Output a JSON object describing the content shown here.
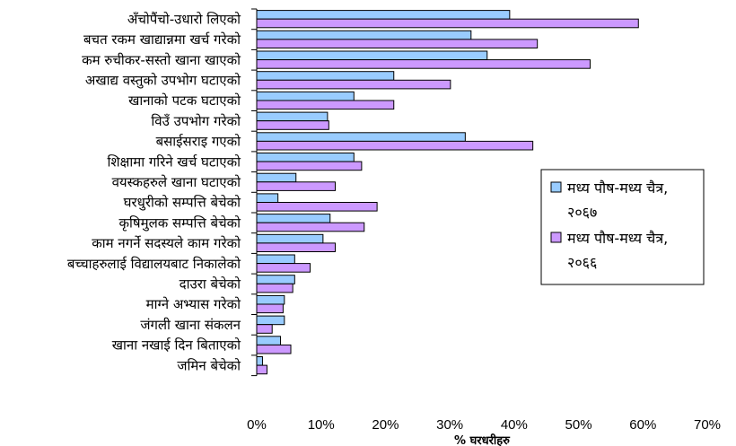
{
  "chart_data": {
    "type": "bar",
    "orientation": "horizontal",
    "title": "",
    "xlabel": "% घरधरीहरु",
    "ylabel": "",
    "xlim": [
      0,
      70
    ],
    "x_ticks": [
      "0%",
      "10%",
      "20%",
      "30%",
      "40%",
      "50%",
      "60%",
      "70%"
    ],
    "grid": false,
    "legend_position": "right",
    "categories": [
      "अँचोपैंचो-उधारो लिएको",
      "बचत रकम खाद्यान्नमा खर्च गरेको",
      "कम रुचीकर-सस्तो खाना खाएको",
      "अखाद्य वस्तुको उपभोग घटाएको",
      "खानाको पटक घटाएको",
      "विउँ उपभोग गरेको",
      "बसाईसराइ गएको",
      "शिक्षामा गरिने खर्च घटाएको",
      "वयस्कहरुले खाना घटाएको",
      "घरधुरीको सम्पत्ति बेचेको",
      "कृषिमुलक सम्पत्ति बेचेको",
      "काम नगर्ने सदस्यले काम गरेको",
      "बच्चाहरुलाई विद्यालयबाट निकालेको",
      "दाउरा बेचेको",
      "माग्ने अभ्यास गरेको",
      "जंगली खाना संकलन",
      "खाना नखाई दिन बिताएको",
      "जमिन बेचेको"
    ],
    "series": [
      {
        "name": "मध्य पौष-मध्य चैत्र, २०६७",
        "color": "#99CCFF",
        "values": [
          39.3,
          33.3,
          35.8,
          21.3,
          15.1,
          11.0,
          32.4,
          15.1,
          6.1,
          3.3,
          11.4,
          10.3,
          5.9,
          5.9,
          4.3,
          4.3,
          3.7,
          0.9
        ]
      },
      {
        "name": "मध्य पौष-मध्य चैत्र, २०६६",
        "color": "#CC99FF",
        "values": [
          59.3,
          43.6,
          51.8,
          30.1,
          21.3,
          11.2,
          42.9,
          16.3,
          12.2,
          18.7,
          16.7,
          12.2,
          8.3,
          5.6,
          4.1,
          2.4,
          5.3,
          1.6
        ]
      }
    ]
  }
}
